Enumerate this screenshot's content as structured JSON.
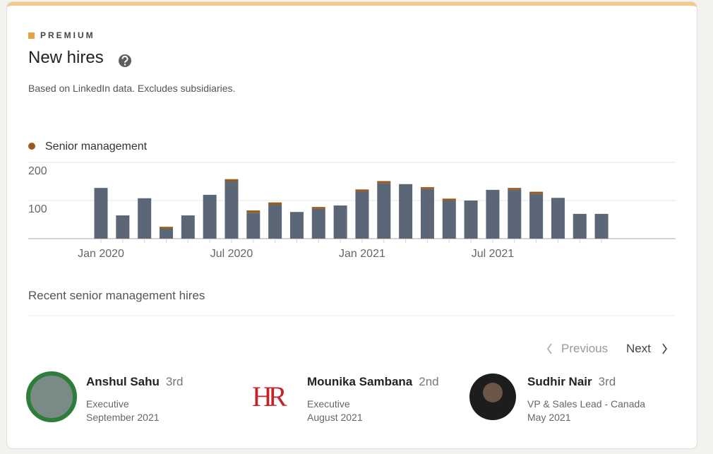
{
  "header": {
    "badge": "PREMIUM",
    "title": "New hires",
    "subtitle": "Based on LinkedIn data. Excludes subsidiaries."
  },
  "chart_data": {
    "type": "bar",
    "stacked": true,
    "categories": [
      "Jan 2020",
      null,
      null,
      null,
      null,
      null,
      "Jul 2020",
      null,
      null,
      null,
      null,
      null,
      "Jan 2021",
      null,
      null,
      null,
      null,
      null,
      "Jul 2021",
      null,
      null,
      null,
      null,
      null
    ],
    "series": [
      {
        "color": "#5b6776",
        "values": [
          133,
          61,
          106,
          26,
          61,
          115,
          150,
          68,
          89,
          70,
          78,
          87,
          124,
          146,
          143,
          130,
          100,
          100,
          128,
          128,
          118,
          107,
          65,
          65
        ]
      },
      {
        "name": "Senior management",
        "color": "#9a5a1c",
        "values": [
          0,
          0,
          0,
          5,
          0,
          0,
          6,
          6,
          6,
          0,
          5,
          0,
          5,
          5,
          0,
          5,
          5,
          0,
          0,
          5,
          5,
          0,
          0,
          0
        ]
      }
    ],
    "ylim": [
      0,
      200
    ],
    "yticks": [
      100,
      200
    ],
    "grid": true,
    "legend": "top-left"
  },
  "hires": {
    "heading": "Recent senior management hires",
    "previous": "Previous",
    "next": "Next",
    "people": [
      {
        "name": "Anshul Sahu",
        "degree": "3rd",
        "title": "Executive",
        "date": "September 2021"
      },
      {
        "name": "Mounika Sambana",
        "degree": "2nd",
        "title": "Executive",
        "date": "August 2021",
        "logo": "HR"
      },
      {
        "name": "Sudhir Nair",
        "degree": "3rd",
        "title": "VP & Sales Lead - Canada",
        "date": "May 2021"
      }
    ]
  }
}
